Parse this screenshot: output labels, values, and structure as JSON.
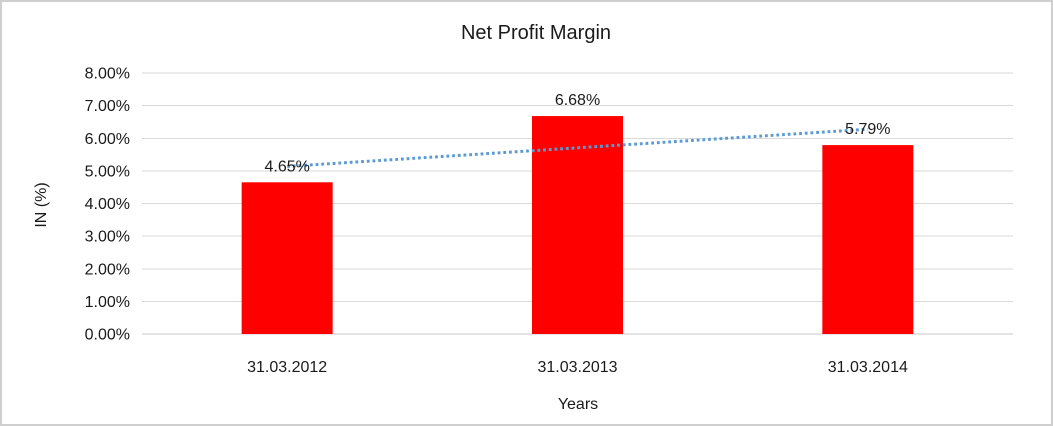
{
  "chart_data": {
    "type": "bar",
    "title": "Net Profit Margin",
    "xlabel": "Years",
    "ylabel": "IN (%)",
    "categories": [
      "31.03.2012",
      "31.03.2013",
      "31.03.2014"
    ],
    "values": [
      4.65,
      6.68,
      5.79
    ],
    "value_labels": [
      "4.65%",
      "6.68%",
      "5.79%"
    ],
    "ylim": [
      0,
      8
    ],
    "ytick_step": 1,
    "ytick_labels": [
      "0.00%",
      "1.00%",
      "2.00%",
      "3.00%",
      "4.00%",
      "5.00%",
      "6.00%",
      "7.00%",
      "8.00%"
    ],
    "grid": true,
    "legend": "none",
    "bar_color": "#ff0000",
    "trendline": {
      "type": "linear",
      "style": "dotted",
      "color": "#5b9bd5"
    },
    "gridline_color": "#d9d9d9",
    "axis_line_color": "#c9c9c9",
    "text_color": "#1a1a1a",
    "frame_border_color": "#cfcfcf"
  }
}
